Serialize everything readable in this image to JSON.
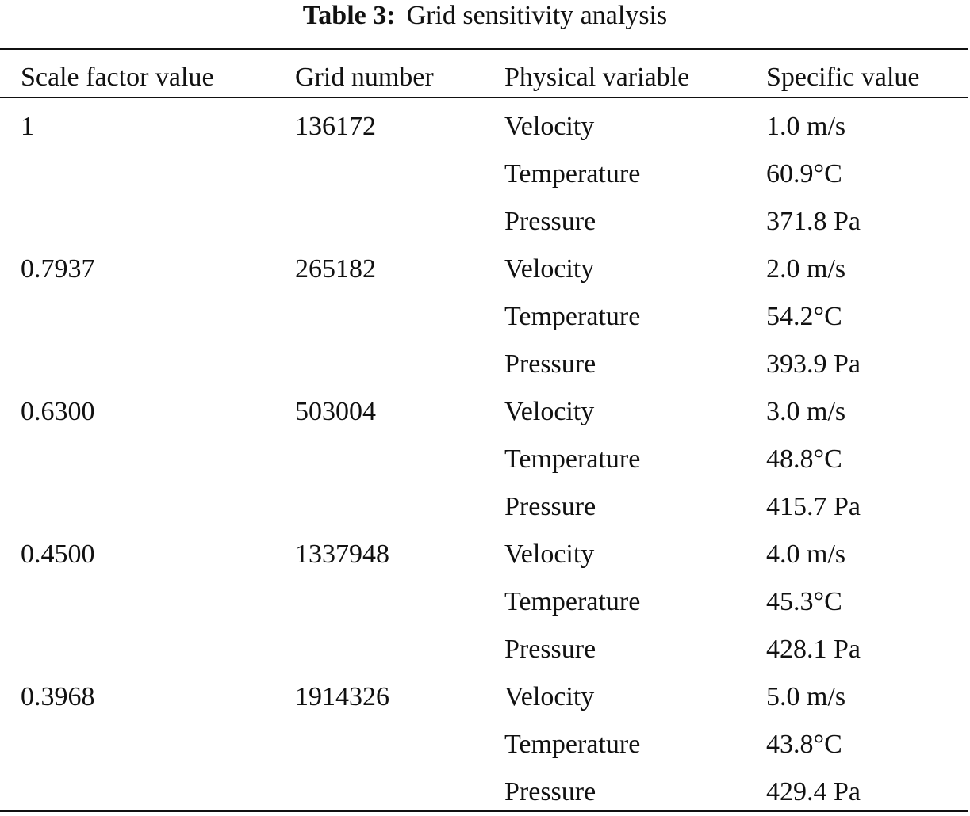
{
  "caption": {
    "label": "Table 3:",
    "title": "Grid sensitivity analysis"
  },
  "table": {
    "headers": [
      "Scale factor value",
      "Grid number",
      "Physical variable",
      "Specific value"
    ],
    "rows": [
      [
        "1",
        "136172",
        "Velocity",
        "1.0 m/s"
      ],
      [
        "",
        "",
        "Temperature",
        "60.9°C"
      ],
      [
        "",
        "",
        "Pressure",
        "371.8 Pa"
      ],
      [
        "0.7937",
        "265182",
        "Velocity",
        "2.0 m/s"
      ],
      [
        "",
        "",
        "Temperature",
        "54.2°C"
      ],
      [
        "",
        "",
        "Pressure",
        "393.9 Pa"
      ],
      [
        "0.6300",
        "503004",
        "Velocity",
        "3.0 m/s"
      ],
      [
        "",
        "",
        "Temperature",
        "48.8°C"
      ],
      [
        "",
        "",
        "Pressure",
        "415.7 Pa"
      ],
      [
        "0.4500",
        "1337948",
        "Velocity",
        "4.0 m/s"
      ],
      [
        "",
        "",
        "Temperature",
        "45.3°C"
      ],
      [
        "",
        "",
        "Pressure",
        "428.1 Pa"
      ],
      [
        "0.3968",
        "1914326",
        "Velocity",
        "5.0 m/s"
      ],
      [
        "",
        "",
        "Temperature",
        "43.8°C"
      ],
      [
        "",
        "",
        "Pressure",
        "429.4 Pa"
      ]
    ]
  }
}
